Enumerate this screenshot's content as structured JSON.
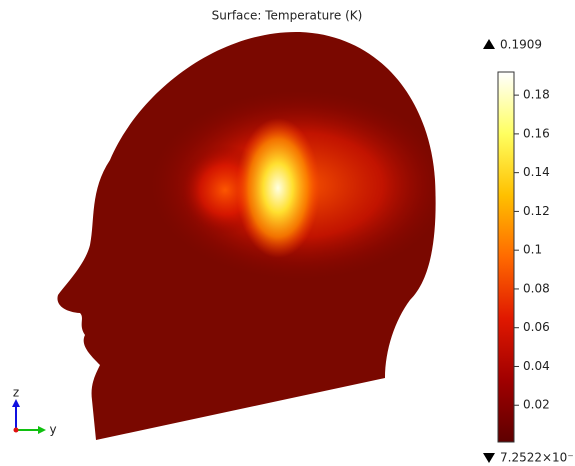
{
  "chart_data": {
    "type": "surface",
    "title": "Surface: Temperature (K)",
    "colorbar": {
      "lim": [
        0,
        0.1909
      ],
      "max": 0.1909,
      "min_label": "7.2522×10⁻",
      "ticks": [
        0.02,
        0.04,
        0.06,
        0.08,
        0.1,
        0.12,
        0.14,
        0.16,
        0.18
      ],
      "colors": [
        "#5e0000",
        "#a00000",
        "#e01800",
        "#ff6a00",
        "#ffc000",
        "#ffff60",
        "#ffffff"
      ]
    },
    "axes_labels": {
      "z": "z",
      "y": "y"
    }
  }
}
